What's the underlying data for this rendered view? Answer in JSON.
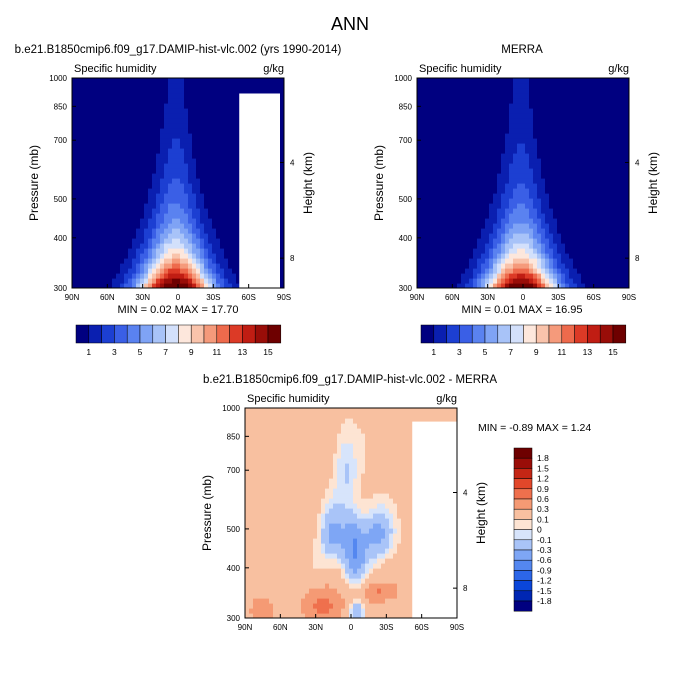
{
  "page_title": "ANN",
  "colors": {
    "upper_scale": [
      "#000080",
      "#0a1fb0",
      "#1c3fd2",
      "#3a5fe6",
      "#5a82f0",
      "#7fa3f5",
      "#a8c3f8",
      "#d3e0fb",
      "#fde7dc",
      "#f9c3ab",
      "#f59a7b",
      "#ee6a4c",
      "#dc3a26",
      "#c01d13",
      "#990d08",
      "#6e0000"
    ],
    "diff_scale": [
      "#000080",
      "#0026b3",
      "#0a46d9",
      "#2c66e8",
      "#5487f0",
      "#7ea6f5",
      "#a9c4f8",
      "#d7e4fb",
      "#fde4d3",
      "#f8c0a0",
      "#f59a74",
      "#ef704d",
      "#e2472a",
      "#c42615",
      "#9a0d08",
      "#6e0000"
    ],
    "blank_region": "#ffffff"
  },
  "chart_data": [
    {
      "type": "heatmap",
      "name": "model",
      "title": "b.e21.B1850cmip6.f09_g17.DAMIP-hist-vlc.002 (yrs 1990-2014)",
      "left_label": "Specific humidity",
      "right_label": "g/kg",
      "ylabel": "Pressure (mb)",
      "ylabel_right": "Height (km)",
      "x_ticks": [
        "90N",
        "60N",
        "30N",
        "0",
        "30S",
        "60S",
        "90S"
      ],
      "x_range": [
        90,
        -90
      ],
      "y_ticks": [
        1000,
        850,
        700,
        500,
        400,
        300
      ],
      "y_range": [
        1000,
        300
      ],
      "height_ticks": [
        4,
        8
      ],
      "min": 0.02,
      "max": 17.7,
      "stats_text": "MIN =  0.02   MAX =  17.70",
      "peak": 17.7,
      "contour_levels": [
        1,
        2,
        3,
        4,
        5,
        6,
        7,
        8,
        9,
        10,
        11,
        12,
        13,
        14,
        15
      ],
      "has_missing_region": true
    },
    {
      "type": "heatmap",
      "name": "obs",
      "title": "MERRA",
      "left_label": "Specific humidity",
      "right_label": "g/kg",
      "ylabel": "Pressure (mb)",
      "ylabel_right": "Height (km)",
      "x_ticks": [
        "90N",
        "60N",
        "30N",
        "0",
        "30S",
        "60S",
        "90S"
      ],
      "x_range": [
        90,
        -90
      ],
      "y_ticks": [
        1000,
        850,
        700,
        500,
        400,
        300
      ],
      "y_range": [
        1000,
        300
      ],
      "height_ticks": [
        4,
        8
      ],
      "min": 0.01,
      "max": 16.95,
      "stats_text": "MIN =  0.01   MAX =  16.95",
      "peak": 16.95,
      "contour_levels": [
        1,
        2,
        3,
        4,
        5,
        6,
        7,
        8,
        9,
        10,
        11,
        12,
        13,
        14,
        15
      ],
      "has_missing_region": false
    },
    {
      "type": "heatmap",
      "name": "difference",
      "title": "b.e21.B1850cmip6.f09_g17.DAMIP-hist-vlc.002 - MERRA",
      "left_label": "Specific humidity",
      "right_label": "g/kg",
      "ylabel": "Pressure (mb)",
      "ylabel_right": "Height (km)",
      "x_ticks": [
        "90N",
        "60N",
        "30N",
        "0",
        "30S",
        "60S",
        "90S"
      ],
      "x_range": [
        90,
        -90
      ],
      "y_ticks": [
        1000,
        850,
        700,
        500,
        400,
        300
      ],
      "y_range": [
        1000,
        300
      ],
      "height_ticks": [
        4,
        8
      ],
      "min": -0.89,
      "max": 1.24,
      "stats_text": "MIN = -0.89   MAX =   1.24",
      "contour_levels": [
        -1.8,
        -1.5,
        -1.2,
        -0.9,
        -0.6,
        -0.3,
        -0.1,
        0,
        0.1,
        0.3,
        0.6,
        0.9,
        1.2,
        1.5,
        1.8
      ],
      "has_missing_region": true
    }
  ],
  "colorbars": {
    "upper": {
      "labels": [
        "1",
        "3",
        "5",
        "7",
        "9",
        "11",
        "13",
        "15"
      ]
    },
    "diff": {
      "labels": [
        "1.8",
        "1.5",
        "1.2",
        "0.9",
        "0.6",
        "0.3",
        "0.1",
        "0",
        "-0.1",
        "-0.3",
        "-0.6",
        "-0.9",
        "-1.2",
        "-1.5",
        "-1.8"
      ]
    }
  }
}
